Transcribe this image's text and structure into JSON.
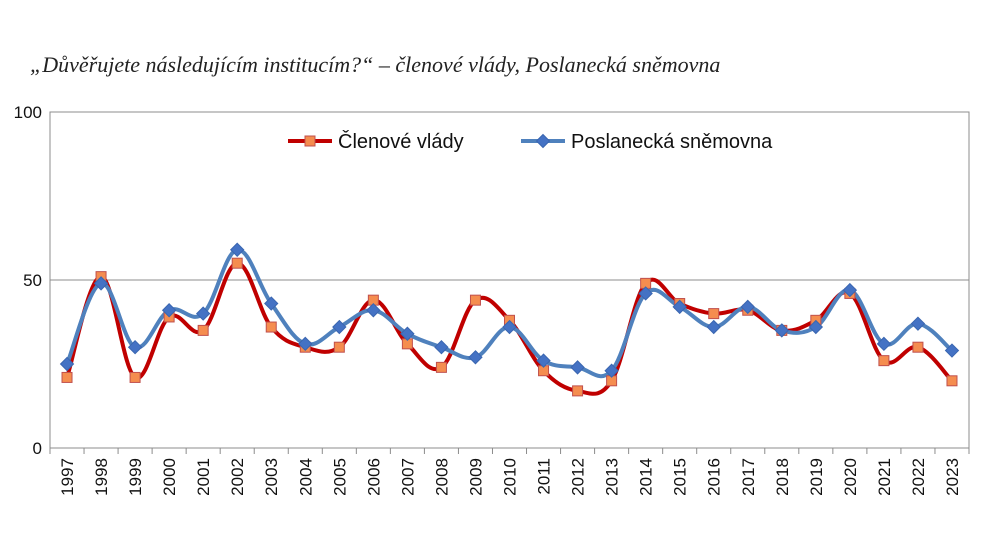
{
  "chart_data": {
    "type": "line",
    "title": "„Důvěřujete následujícím institucím?“ – členové vlády, Poslanecká sněmovna",
    "xlabel": "",
    "ylabel": "",
    "ylim": [
      0,
      100
    ],
    "yticks": [
      0,
      50,
      100
    ],
    "ytick_labels": [
      "0",
      "50",
      "100"
    ],
    "grid": "horizontal line at 50",
    "legend_position": "top-center",
    "categories": [
      "1997",
      "1998",
      "1999",
      "2000",
      "2001",
      "2002",
      "2003",
      "2004",
      "2005",
      "2006",
      "2007",
      "2008",
      "2009",
      "2010",
      "2011",
      "2012",
      "2013",
      "2014",
      "2015",
      "2016",
      "2017",
      "2018",
      "2019",
      "2020",
      "2021",
      "2022",
      "2023"
    ],
    "series": [
      {
        "name": "Členové vlády",
        "color": "#c00000",
        "marker_color": "#f58d4f",
        "marker": "square",
        "values": [
          21,
          51,
          21,
          39,
          35,
          55,
          36,
          30,
          30,
          44,
          31,
          24,
          44,
          38,
          23,
          17,
          20,
          49,
          43,
          40,
          41,
          35,
          38,
          46,
          26,
          30,
          20
        ]
      },
      {
        "name": "Poslanecká sněmovna",
        "color": "#4f81bd",
        "marker_color": "#4472c4",
        "marker": "diamond",
        "values": [
          25,
          49,
          30,
          41,
          40,
          59,
          43,
          31,
          36,
          41,
          34,
          30,
          27,
          36,
          26,
          24,
          23,
          46,
          42,
          36,
          42,
          35,
          36,
          47,
          31,
          37,
          29
        ]
      }
    ]
  }
}
